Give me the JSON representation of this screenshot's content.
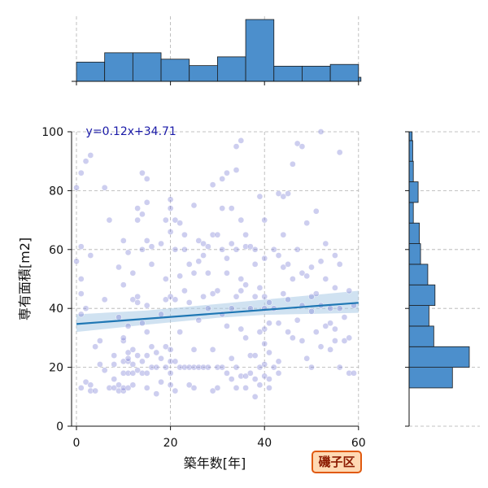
{
  "chart_data": {
    "type": "scatter",
    "title": "",
    "xlabel": "築年数[年]",
    "ylabel": "専有面積[m2]",
    "xlim": [
      -1,
      60
    ],
    "ylim": [
      0,
      100
    ],
    "xticks": [
      0,
      20,
      40,
      60
    ],
    "yticks": [
      0,
      20,
      40,
      60,
      80,
      100
    ],
    "grid": true,
    "regression": {
      "label": "y=0.12x+34.71",
      "slope": 0.12,
      "intercept": 34.71,
      "ci": [
        {
          "x": 0,
          "lo": 32.0,
          "hi": 38.0
        },
        {
          "x": 15,
          "lo": 34.5,
          "hi": 39.3
        },
        {
          "x": 30,
          "lo": 36.8,
          "hi": 41.5
        },
        {
          "x": 40,
          "lo": 37.8,
          "hi": 43.0
        },
        {
          "x": 60,
          "lo": 38.5,
          "hi": 46.0
        }
      ]
    },
    "badge": "磯子区",
    "points": [
      [
        2,
        90
      ],
      [
        3,
        92
      ],
      [
        1,
        86
      ],
      [
        0,
        81
      ],
      [
        1,
        61
      ],
      [
        0,
        56
      ],
      [
        1,
        50
      ],
      [
        1,
        45
      ],
      [
        1,
        38
      ],
      [
        2,
        40
      ],
      [
        1,
        13
      ],
      [
        2,
        15
      ],
      [
        3,
        12
      ],
      [
        3,
        14
      ],
      [
        4,
        12
      ],
      [
        3,
        58
      ],
      [
        4,
        27
      ],
      [
        5,
        21
      ],
      [
        5,
        29
      ],
      [
        6,
        43
      ],
      [
        6,
        81
      ],
      [
        6,
        19
      ],
      [
        7,
        70
      ],
      [
        7,
        13
      ],
      [
        8,
        13
      ],
      [
        8,
        21
      ],
      [
        8,
        24
      ],
      [
        8,
        16
      ],
      [
        9,
        12
      ],
      [
        9,
        14
      ],
      [
        9,
        54
      ],
      [
        9,
        37
      ],
      [
        10,
        12
      ],
      [
        10,
        13
      ],
      [
        10,
        18
      ],
      [
        10,
        22
      ],
      [
        10,
        29
      ],
      [
        10,
        30
      ],
      [
        10,
        63
      ],
      [
        10,
        48
      ],
      [
        11,
        13
      ],
      [
        11,
        22
      ],
      [
        11,
        23
      ],
      [
        11,
        25
      ],
      [
        11,
        18
      ],
      [
        11,
        59
      ],
      [
        11,
        34
      ],
      [
        12,
        43
      ],
      [
        12,
        21
      ],
      [
        12,
        18
      ],
      [
        12,
        14
      ],
      [
        12,
        26
      ],
      [
        12,
        52
      ],
      [
        13,
        70
      ],
      [
        13,
        74
      ],
      [
        13,
        42
      ],
      [
        13,
        24
      ],
      [
        13,
        19
      ],
      [
        13,
        44
      ],
      [
        14,
        86
      ],
      [
        14,
        60
      ],
      [
        14,
        72
      ],
      [
        14,
        35
      ],
      [
        14,
        22
      ],
      [
        14,
        18
      ],
      [
        15,
        84
      ],
      [
        15,
        76
      ],
      [
        15,
        63
      ],
      [
        15,
        41
      ],
      [
        15,
        32
      ],
      [
        15,
        24
      ],
      [
        15,
        18
      ],
      [
        15,
        13
      ],
      [
        16,
        55
      ],
      [
        16,
        61
      ],
      [
        16,
        27
      ],
      [
        16,
        20
      ],
      [
        17,
        25
      ],
      [
        17,
        20
      ],
      [
        17,
        11
      ],
      [
        18,
        38
      ],
      [
        18,
        62
      ],
      [
        18,
        23
      ],
      [
        18,
        15
      ],
      [
        19,
        70
      ],
      [
        19,
        50
      ],
      [
        19,
        43
      ],
      [
        19,
        20
      ],
      [
        19,
        27
      ],
      [
        20,
        77
      ],
      [
        20,
        74
      ],
      [
        20,
        66
      ],
      [
        20,
        44
      ],
      [
        20,
        26
      ],
      [
        20,
        22
      ],
      [
        20,
        18
      ],
      [
        20,
        14
      ],
      [
        21,
        70
      ],
      [
        21,
        60
      ],
      [
        21,
        43
      ],
      [
        21,
        22
      ],
      [
        21,
        12
      ],
      [
        22,
        69
      ],
      [
        22,
        51
      ],
      [
        22,
        32
      ],
      [
        22,
        20
      ],
      [
        23,
        65
      ],
      [
        23,
        60
      ],
      [
        23,
        46
      ],
      [
        23,
        20
      ],
      [
        24,
        55
      ],
      [
        24,
        42
      ],
      [
        24,
        20
      ],
      [
        24,
        14
      ],
      [
        25,
        75
      ],
      [
        25,
        52
      ],
      [
        25,
        26
      ],
      [
        25,
        20
      ],
      [
        25,
        13
      ],
      [
        26,
        63
      ],
      [
        26,
        56
      ],
      [
        26,
        36
      ],
      [
        26,
        20
      ],
      [
        27,
        62
      ],
      [
        27,
        58
      ],
      [
        27,
        44
      ],
      [
        27,
        20
      ],
      [
        28,
        61
      ],
      [
        28,
        52
      ],
      [
        28,
        40
      ],
      [
        28,
        20
      ],
      [
        29,
        82
      ],
      [
        29,
        65
      ],
      [
        29,
        45
      ],
      [
        29,
        26
      ],
      [
        29,
        12
      ],
      [
        30,
        65
      ],
      [
        30,
        46
      ],
      [
        30,
        20
      ],
      [
        30,
        13
      ],
      [
        31,
        84
      ],
      [
        31,
        74
      ],
      [
        31,
        60
      ],
      [
        31,
        38
      ],
      [
        31,
        20
      ],
      [
        32,
        86
      ],
      [
        32,
        57
      ],
      [
        32,
        52
      ],
      [
        32,
        34
      ],
      [
        32,
        18
      ],
      [
        33,
        74
      ],
      [
        33,
        62
      ],
      [
        33,
        40
      ],
      [
        33,
        23
      ],
      [
        33,
        16
      ],
      [
        34,
        95
      ],
      [
        34,
        87
      ],
      [
        34,
        60
      ],
      [
        34,
        44
      ],
      [
        34,
        20
      ],
      [
        34,
        13
      ],
      [
        35,
        97
      ],
      [
        35,
        70
      ],
      [
        35,
        50
      ],
      [
        35,
        46
      ],
      [
        35,
        33
      ],
      [
        35,
        17
      ],
      [
        36,
        65
      ],
      [
        36,
        61
      ],
      [
        36,
        48
      ],
      [
        36,
        30
      ],
      [
        36,
        17
      ],
      [
        36,
        13
      ],
      [
        37,
        61
      ],
      [
        37,
        40
      ],
      [
        37,
        24
      ],
      [
        37,
        18
      ],
      [
        38,
        60
      ],
      [
        38,
        55
      ],
      [
        38,
        44
      ],
      [
        38,
        24
      ],
      [
        38,
        16
      ],
      [
        38,
        10
      ],
      [
        39,
        78
      ],
      [
        39,
        47
      ],
      [
        39,
        20
      ],
      [
        39,
        14
      ],
      [
        39,
        32
      ],
      [
        40,
        70
      ],
      [
        40,
        57
      ],
      [
        40,
        44
      ],
      [
        40,
        40
      ],
      [
        40,
        33
      ],
      [
        40,
        28
      ],
      [
        40,
        21
      ],
      [
        40,
        17
      ],
      [
        41,
        42
      ],
      [
        41,
        35
      ],
      [
        41,
        25
      ],
      [
        41,
        16
      ],
      [
        41,
        13
      ],
      [
        42,
        60
      ],
      [
        42,
        40
      ],
      [
        42,
        20
      ],
      [
        43,
        79
      ],
      [
        43,
        58
      ],
      [
        43,
        35
      ],
      [
        43,
        22
      ],
      [
        43,
        18
      ],
      [
        44,
        78
      ],
      [
        44,
        65
      ],
      [
        44,
        54
      ],
      [
        44,
        45
      ],
      [
        45,
        79
      ],
      [
        45,
        55
      ],
      [
        45,
        43
      ],
      [
        45,
        32
      ],
      [
        46,
        89
      ],
      [
        46,
        50
      ],
      [
        46,
        30
      ],
      [
        47,
        96
      ],
      [
        47,
        60
      ],
      [
        47,
        36
      ],
      [
        48,
        95
      ],
      [
        48,
        52
      ],
      [
        48,
        41
      ],
      [
        48,
        29
      ],
      [
        49,
        69
      ],
      [
        49,
        51
      ],
      [
        49,
        23
      ],
      [
        50,
        54
      ],
      [
        50,
        44
      ],
      [
        50,
        39
      ],
      [
        50,
        20
      ],
      [
        51,
        73
      ],
      [
        51,
        45
      ],
      [
        51,
        32
      ],
      [
        52,
        100
      ],
      [
        52,
        56
      ],
      [
        52,
        41
      ],
      [
        52,
        27
      ],
      [
        53,
        62
      ],
      [
        53,
        50
      ],
      [
        53,
        34
      ],
      [
        54,
        40
      ],
      [
        54,
        35
      ],
      [
        54,
        26
      ],
      [
        55,
        58
      ],
      [
        55,
        47
      ],
      [
        55,
        33
      ],
      [
        55,
        29
      ],
      [
        56,
        93
      ],
      [
        56,
        55
      ],
      [
        56,
        40
      ],
      [
        56,
        20
      ],
      [
        57,
        37
      ],
      [
        57,
        29
      ],
      [
        58,
        46
      ],
      [
        58,
        30
      ],
      [
        58,
        18
      ],
      [
        59,
        41
      ],
      [
        59,
        18
      ]
    ],
    "marginal_x": {
      "edges": [
        0,
        6,
        12,
        18,
        24,
        30,
        36,
        42,
        48,
        54,
        60
      ],
      "counts": [
        33,
        49,
        49,
        38,
        27,
        42,
        106,
        26,
        26,
        29
      ]
    },
    "marginal_y": {
      "edges": [
        13,
        20,
        27,
        34,
        41,
        48,
        55,
        62,
        69,
        76,
        83,
        90,
        97,
        100
      ],
      "counts": [
        72,
        100,
        41,
        33,
        43,
        31,
        19,
        17,
        7,
        15,
        7,
        6,
        5
      ]
    },
    "colors": {
      "points": "#7b7fd6",
      "regression": "#1f77b4",
      "ci_band": "#aacbe6",
      "histogram": "#4c8fcc",
      "histogram_edge": "#1a1a1a",
      "badge_fill": "#ffd9b3",
      "badge_edge": "#e05a10",
      "badge_text": "#8b1a00"
    }
  }
}
